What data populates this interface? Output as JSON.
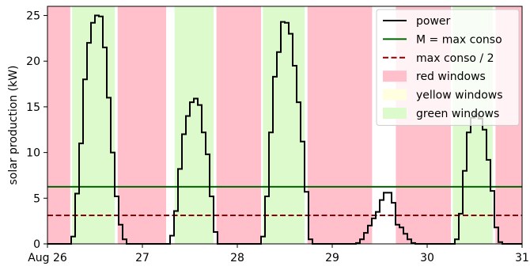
{
  "chart_data": {
    "type": "line",
    "xlabel": "",
    "ylabel": "solar production (kW)",
    "x_ticks": [
      {
        "day": 26,
        "label": "Aug 26"
      },
      {
        "day": 27,
        "label": "27"
      },
      {
        "day": 28,
        "label": "28"
      },
      {
        "day": 29,
        "label": "29"
      },
      {
        "day": 30,
        "label": "30"
      },
      {
        "day": 31,
        "label": "31"
      }
    ],
    "y_ticks": [
      0,
      5,
      10,
      15,
      20,
      25
    ],
    "xlim_day": [
      26,
      31
    ],
    "ylim": [
      0,
      26
    ],
    "series": [
      {
        "name": "power",
        "style": "step",
        "color": "#000000",
        "step_hours": 1,
        "start_day": 26,
        "values": [
          0,
          0,
          0,
          0,
          0,
          0,
          0.8,
          5.5,
          11,
          18,
          22,
          24.2,
          25,
          24.9,
          21.5,
          16,
          10,
          5.2,
          2.1,
          0.5,
          0,
          0,
          0,
          0,
          0,
          0,
          0,
          0,
          0,
          0,
          0,
          0.9,
          3.6,
          8.2,
          12,
          14,
          15.5,
          15.9,
          15.2,
          12.2,
          9.8,
          5.2,
          1.3,
          0,
          0,
          0,
          0,
          0,
          0,
          0,
          0,
          0,
          0,
          0,
          0.8,
          5.2,
          12.2,
          18.3,
          21,
          24.3,
          24.2,
          23,
          19.5,
          15.5,
          11.2,
          5.7,
          0.5,
          0,
          0,
          0,
          0,
          0,
          0,
          0,
          0,
          0,
          0,
          0,
          0.1,
          0.5,
          1.2,
          2,
          2.8,
          3.5,
          4.8,
          5.6,
          5.6,
          4.5,
          2.1,
          1.8,
          1.1,
          0.5,
          0.1,
          0,
          0,
          0,
          0,
          0,
          0,
          0,
          0,
          0,
          0,
          0.5,
          3.3,
          8,
          12.2,
          13.8,
          14.2,
          13.7,
          12.5,
          9.2,
          5.8,
          1.8,
          0.2,
          0,
          0,
          0,
          0,
          0
        ]
      },
      {
        "name": "M = max conso",
        "style": "hline",
        "value": 6.25,
        "color": "#006400"
      },
      {
        "name": "max conso / 2",
        "style": "hline-dashed",
        "value": 3.125,
        "color": "#8b0000"
      }
    ],
    "windows": [
      {
        "kind": "red",
        "start_day": 26.0,
        "end_day": 26.24
      },
      {
        "kind": "green",
        "start_day": 26.26,
        "end_day": 26.71
      },
      {
        "kind": "red",
        "start_day": 26.74,
        "end_day": 27.25
      },
      {
        "kind": "green",
        "start_day": 27.34,
        "end_day": 27.75
      },
      {
        "kind": "red",
        "start_day": 27.78,
        "end_day": 28.25
      },
      {
        "kind": "green",
        "start_day": 28.27,
        "end_day": 28.71
      },
      {
        "kind": "red",
        "start_day": 28.74,
        "end_day": 29.42
      },
      {
        "kind": "red",
        "start_day": 29.67,
        "end_day": 30.25
      },
      {
        "kind": "green",
        "start_day": 30.27,
        "end_day": 30.69
      },
      {
        "kind": "red",
        "start_day": 30.72,
        "end_day": 31.0
      }
    ],
    "window_colors": {
      "red": "#ffc0cb",
      "yellow": "#ffffe0",
      "green": "#dcfacb"
    },
    "legend": {
      "placement": "top-right",
      "items": [
        {
          "label": "power",
          "kind": "line",
          "color": "#000000"
        },
        {
          "label": "M = max conso",
          "kind": "line",
          "color": "#006400"
        },
        {
          "label": "max conso / 2",
          "kind": "dashed",
          "color": "#8b0000"
        },
        {
          "label": "red windows",
          "kind": "patch",
          "color": "#ffc0cb"
        },
        {
          "label": "yellow windows",
          "kind": "patch",
          "color": "#ffffe0"
        },
        {
          "label": "green windows",
          "kind": "patch",
          "color": "#dcfacb"
        }
      ]
    },
    "grid": false
  }
}
